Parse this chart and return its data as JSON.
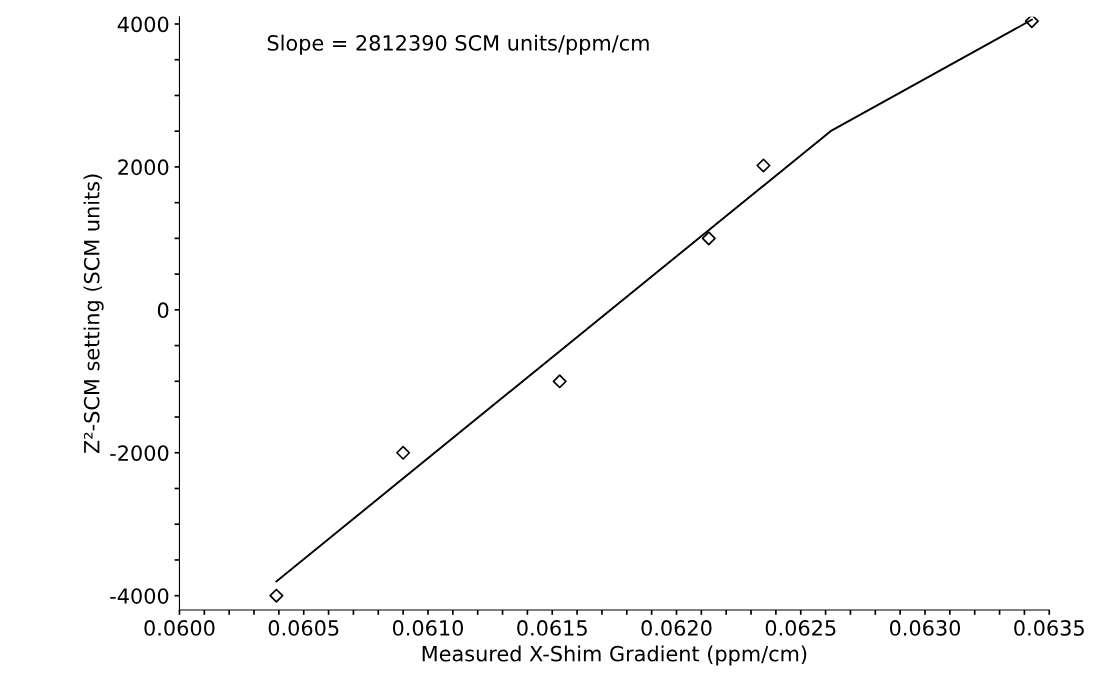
{
  "chart_data": {
    "type": "scatter",
    "xlabel": "Measured X-Shim Gradient (ppm/cm)",
    "ylabel": "Z²-SCM setting (SCM units)",
    "annotations": [
      "Slope = 2812390 SCM units/ppm/cm"
    ],
    "series": [
      {
        "color": "#000000",
        "marker": "diamond",
        "x": [
          0.06039,
          0.0609,
          0.06153,
          0.06213,
          0.06235,
          0.06343
        ],
        "values": [
          -4000,
          -2000,
          -1000,
          1000,
          2020,
          4040
        ]
      },
      {
        "type": "line",
        "color": "#000000",
        "marker": "none",
        "x": [
          0.06039,
          0.06262,
          0.06343
        ],
        "values": [
          -3800,
          2500,
          4060
        ]
      }
    ],
    "xlim": [
      0.06,
      0.0635
    ],
    "xticks": [
      {
        "value": 0.06,
        "label": "0.0600"
      },
      {
        "value": 0.0601,
        "label": null
      },
      {
        "value": 0.0602,
        "label": null
      },
      {
        "value": 0.0603,
        "label": null
      },
      {
        "value": 0.0604,
        "label": null
      },
      {
        "value": 0.0605,
        "label": "0.0605"
      },
      {
        "value": 0.0606,
        "label": null
      },
      {
        "value": 0.0607,
        "label": null
      },
      {
        "value": 0.0608,
        "label": null
      },
      {
        "value": 0.0609,
        "label": null
      },
      {
        "value": 0.061,
        "label": "0.0610"
      },
      {
        "value": 0.0611,
        "label": null
      },
      {
        "value": 0.0612,
        "label": null
      },
      {
        "value": 0.0613,
        "label": null
      },
      {
        "value": 0.0614,
        "label": null
      },
      {
        "value": 0.0615,
        "label": "0.0615"
      },
      {
        "value": 0.0616,
        "label": null
      },
      {
        "value": 0.0617,
        "label": null
      },
      {
        "value": 0.0618,
        "label": null
      },
      {
        "value": 0.0619,
        "label": null
      },
      {
        "value": 0.062,
        "label": "0.0620"
      },
      {
        "value": 0.0621,
        "label": null
      },
      {
        "value": 0.0622,
        "label": null
      },
      {
        "value": 0.0623,
        "label": null
      },
      {
        "value": 0.0624,
        "label": null
      },
      {
        "value": 0.0625,
        "label": "0.0625"
      },
      {
        "value": 0.0626,
        "label": null
      },
      {
        "value": 0.0627,
        "label": null
      },
      {
        "value": 0.0628,
        "label": null
      },
      {
        "value": 0.0629,
        "label": null
      },
      {
        "value": 0.063,
        "label": "0.0630"
      },
      {
        "value": 0.0631,
        "label": null
      },
      {
        "value": 0.0632,
        "label": null
      },
      {
        "value": 0.0633,
        "label": null
      },
      {
        "value": 0.0634,
        "label": null
      },
      {
        "value": 0.0635,
        "label": "0.0635"
      }
    ],
    "ylim": [
      -4200,
      4100
    ],
    "yticks": [
      -4000,
      {
        "value": -3500,
        "label": null
      },
      {
        "value": -3000,
        "label": null
      },
      {
        "value": -2500,
        "label": null
      },
      -2000,
      {
        "value": -1500,
        "label": null
      },
      {
        "value": -1000,
        "label": null
      },
      {
        "value": -500,
        "label": null
      },
      0,
      {
        "value": 500,
        "label": null
      },
      {
        "value": 1000,
        "label": null
      },
      {
        "value": 1500,
        "label": null
      },
      2000,
      {
        "value": 2500,
        "label": null
      },
      {
        "value": 3000,
        "label": null
      },
      {
        "value": 3500,
        "label": null
      },
      4000
    ],
    "grid": false,
    "legend": false
  }
}
